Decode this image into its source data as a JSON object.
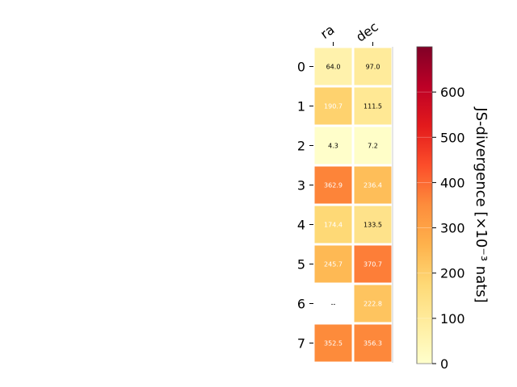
{
  "chart_data": {
    "type": "heatmap",
    "columns": [
      "ra",
      "dec"
    ],
    "rows": [
      "0",
      "1",
      "2",
      "3",
      "4",
      "5",
      "6",
      "7"
    ],
    "values": [
      [
        64.0,
        97.0
      ],
      [
        190.7,
        111.5
      ],
      [
        4.3,
        7.2
      ],
      [
        362.9,
        236.4
      ],
      [
        174.4,
        133.5
      ],
      [
        245.7,
        370.7
      ],
      [
        null,
        222.8
      ],
      [
        352.5,
        356.3
      ]
    ],
    "cell_labels": [
      [
        "64.0",
        "97.0"
      ],
      [
        "190.7",
        "111.5"
      ],
      [
        "4.3",
        "7.2"
      ],
      [
        "362.9",
        "236.4"
      ],
      [
        "174.4",
        "133.5"
      ],
      [
        "245.7",
        "370.7"
      ],
      [
        "--",
        "222.8"
      ],
      [
        "352.5",
        "356.3"
      ]
    ],
    "colorbar": {
      "label": "JS-divergence [×10⁻³ nats]",
      "range": [
        0,
        700
      ],
      "ticks": [
        "0",
        "100",
        "200",
        "300",
        "400",
        "500",
        "600"
      ],
      "tick_values": [
        0,
        100,
        200,
        300,
        400,
        500,
        600
      ],
      "colormap": "YlOrRd"
    },
    "grid": false,
    "x_ticks_position": "top"
  }
}
